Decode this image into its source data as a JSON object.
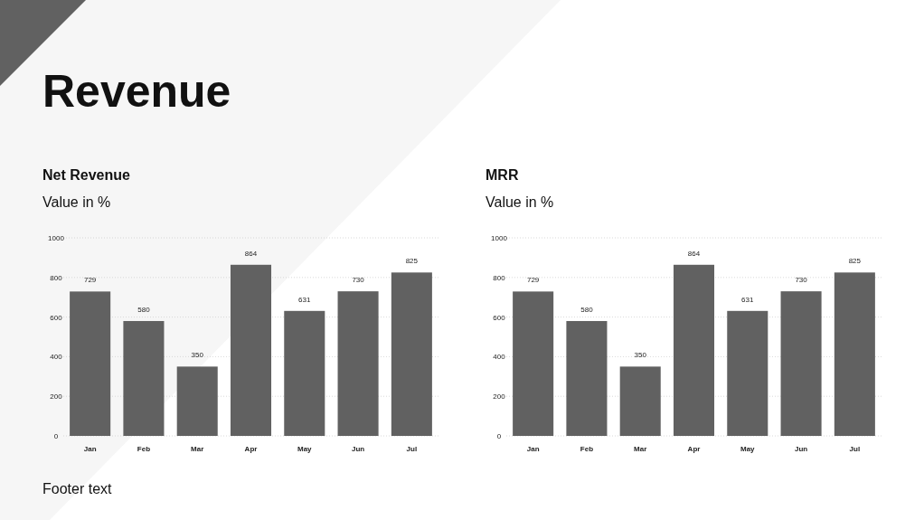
{
  "chart_data": [
    {
      "type": "other",
      "title": "Revenue",
      "annotations": [
        "Footer text"
      ]
    },
    {
      "type": "bar",
      "title": "Net Revenue",
      "subtitle": "Value in %",
      "categories": [
        "Jan",
        "Feb",
        "Mar",
        "Apr",
        "May",
        "Jun",
        "Jul"
      ],
      "values": [
        729,
        580,
        350,
        864,
        631,
        730,
        825
      ],
      "color": "#616161",
      "ylim": [
        0,
        1000
      ],
      "yticks": [
        0,
        200,
        400,
        600,
        800,
        1000
      ],
      "grid": "y",
      "data_labels": true
    },
    {
      "type": "bar",
      "title": "MRR",
      "subtitle": "Value in %",
      "categories": [
        "Jan",
        "Feb",
        "Mar",
        "Apr",
        "May",
        "Jun",
        "Jul"
      ],
      "values": [
        729,
        580,
        350,
        864,
        631,
        730,
        825
      ],
      "color": "#616161",
      "ylim": [
        0,
        1000
      ],
      "yticks": [
        0,
        200,
        400,
        600,
        800,
        1000
      ],
      "grid": "y",
      "data_labels": true
    }
  ]
}
